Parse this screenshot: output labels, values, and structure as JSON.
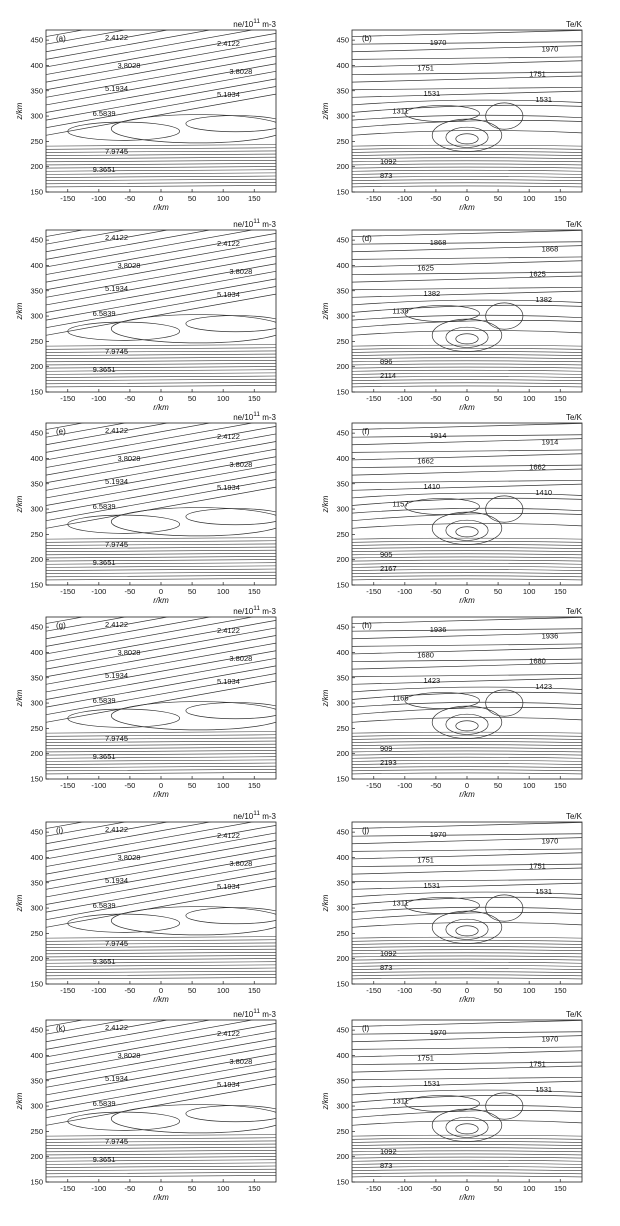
{
  "figure": {
    "panels": [
      {
        "id": "a",
        "label": "(a)",
        "quantity": "ne",
        "unit_label": "n_e/10^11 m^-3",
        "xlabel": "r/km",
        "ylabel": "z/km",
        "contour_labels": [
          "2.4122",
          "3.8028",
          "5.1934",
          "6.5839",
          "7.9745",
          "9.3651"
        ]
      },
      {
        "id": "b",
        "label": "(b)",
        "quantity": "Te",
        "unit_label": "T_e/K",
        "xlabel": "r/km",
        "ylabel": "z/km",
        "contour_labels": [
          "1970",
          "1751",
          "1531",
          "1311",
          "1092",
          "873"
        ]
      },
      {
        "id": "c",
        "label": "",
        "quantity": "ne",
        "unit_label": "n_e/10^11 m^-3",
        "xlabel": "r/km",
        "ylabel": "z/km",
        "contour_labels": [
          "2.4122",
          "3.8028",
          "5.1934",
          "6.5839",
          "7.9745",
          "9.3651"
        ]
      },
      {
        "id": "d",
        "label": "(d)",
        "quantity": "Te",
        "unit_label": "T_e/K",
        "xlabel": "r/km",
        "ylabel": "z/km",
        "contour_labels": [
          "1868",
          "1625",
          "1382",
          "1139",
          "896",
          "2114"
        ]
      },
      {
        "id": "e",
        "label": "(e)",
        "quantity": "ne",
        "unit_label": "n_e/10^11 m^-3",
        "xlabel": "r/km",
        "ylabel": "z/km",
        "contour_labels": [
          "2.4122",
          "3.8028",
          "5.1934",
          "6.5839",
          "7.9745",
          "9.3651"
        ]
      },
      {
        "id": "f",
        "label": "(f)",
        "quantity": "Te",
        "unit_label": "T_e/K",
        "xlabel": "r/km",
        "ylabel": "z/km",
        "contour_labels": [
          "1914",
          "1662",
          "1410",
          "1157",
          "905",
          "2167"
        ]
      },
      {
        "id": "g",
        "label": "(g)",
        "quantity": "ne",
        "unit_label": "n_e/10^11 m^-3",
        "xlabel": "r/km",
        "ylabel": "z/km",
        "contour_labels": [
          "2.4122",
          "3.8028",
          "5.1934",
          "6.5839",
          "7.9745",
          "9.3651"
        ]
      },
      {
        "id": "h",
        "label": "(h)",
        "quantity": "Te",
        "unit_label": "T_e/K",
        "xlabel": "r/km",
        "ylabel": "z/km",
        "contour_labels": [
          "1936",
          "1680",
          "1423",
          "1166",
          "909",
          "2193"
        ]
      },
      {
        "id": "i",
        "label": "(i)",
        "quantity": "ne",
        "unit_label": "n_e/10^11 m^-3",
        "xlabel": "r/km",
        "ylabel": "z/km",
        "contour_labels": [
          "2.4122",
          "3.8028",
          "5.1934",
          "6.5839",
          "7.9745",
          "9.3651"
        ]
      },
      {
        "id": "j",
        "label": "(j)",
        "quantity": "Te",
        "unit_label": "T_e/K",
        "xlabel": "r/km",
        "ylabel": "z/km",
        "contour_labels": [
          "1970",
          "1751",
          "1531",
          "1311",
          "1092",
          "873"
        ]
      },
      {
        "id": "k",
        "label": "(k)",
        "quantity": "ne",
        "unit_label": "n_e/10^11 m^-3",
        "xlabel": "r/km",
        "ylabel": "z/km",
        "contour_labels": [
          "2.4122",
          "3.8028",
          "5.1934",
          "6.5839",
          "7.9745",
          "9.3651"
        ]
      },
      {
        "id": "l",
        "label": "(l)",
        "quantity": "Te",
        "unit_label": "T_e/K",
        "xlabel": "r/km",
        "ylabel": "z/km",
        "contour_labels": [
          "1970",
          "1751",
          "1531",
          "1311",
          "1092",
          "873"
        ]
      }
    ]
  },
  "chart_data": {
    "type": "contour",
    "layout": "6 rows x 2 columns",
    "xlim": [
      -185,
      185
    ],
    "ylim": [
      150,
      470
    ],
    "xticks": [
      -150,
      -100,
      -50,
      0,
      50,
      100,
      150
    ],
    "yticks": [
      150,
      200,
      250,
      300,
      350,
      400,
      450
    ],
    "ne_levels": [
      2.4122,
      3.8028,
      5.1934,
      6.5839,
      7.9745,
      9.3651
    ],
    "te_levels_b": [
      1970,
      1751,
      1531,
      1311,
      1092,
      873
    ],
    "te_levels_d": [
      1868,
      1625,
      1382,
      1139,
      896,
      2114
    ],
    "te_levels_f": [
      1914,
      1662,
      1410,
      1157,
      905,
      2167
    ],
    "te_levels_h": [
      1936,
      1680,
      1423,
      1166,
      909,
      2193
    ],
    "te_levels_j": [
      1970,
      1751,
      1531,
      1311,
      1092,
      873
    ],
    "te_levels_l": [
      1970,
      1751,
      1531,
      1311,
      1092,
      873
    ],
    "grid": false
  }
}
